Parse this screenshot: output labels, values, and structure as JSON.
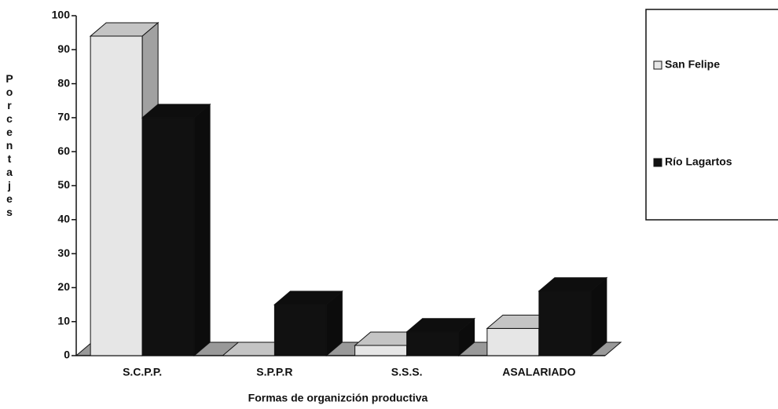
{
  "chart_data": {
    "type": "bar3d",
    "x_label": "Formas de organizción productiva",
    "y_label": "Porcentajes",
    "categories": [
      "S.C.P.P.",
      "S.P.P.R",
      "S.S.S.",
      "ASALARIADO"
    ],
    "series": [
      {
        "name": "San Felipe",
        "color": "#e6e6e6",
        "values": [
          94,
          0,
          3,
          8
        ]
      },
      {
        "name": "Río Lagartos",
        "color": "#111111",
        "values": [
          70,
          15,
          7,
          19
        ]
      }
    ],
    "ylim": [
      0,
      100
    ],
    "yticks": [
      0,
      10,
      20,
      30,
      40,
      50,
      60,
      70,
      80,
      90,
      100
    ],
    "legend": "right"
  }
}
